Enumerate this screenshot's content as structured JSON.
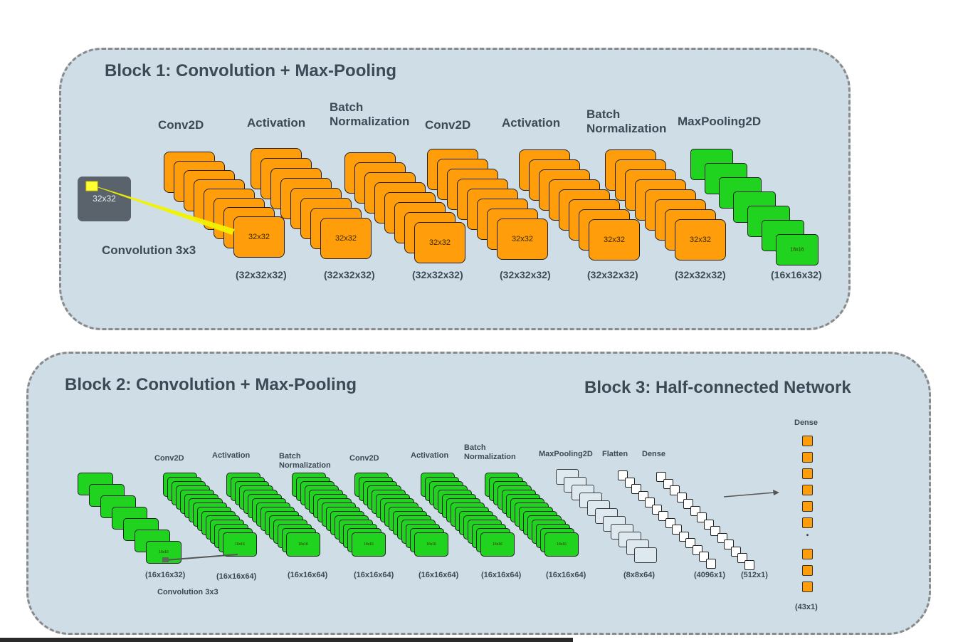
{
  "block1": {
    "title": "Block 1: Convolution + Max-Pooling",
    "input_label": "32x32",
    "conv_note": "Convolution 3x3",
    "layers": [
      {
        "name": "Conv2D",
        "output": "(32x32x32)",
        "map_label": "32x32",
        "color": "#ff9d0a"
      },
      {
        "name": "Activation",
        "output": "(32x32x32)",
        "map_label": "32x32",
        "color": "#ff9d0a"
      },
      {
        "name": "Batch\nNormalization",
        "output": "(32x32x32)",
        "map_label": "32x32",
        "color": "#ff9d0a"
      },
      {
        "name": "Conv2D",
        "output": "(32x32x32)",
        "map_label": "32x32",
        "color": "#ff9d0a"
      },
      {
        "name": "Activation",
        "output": "(32x32x32)",
        "map_label": "32x32",
        "color": "#ff9d0a"
      },
      {
        "name": "Batch\nNormalization",
        "output": "(32x32x32)",
        "map_label": "32x32",
        "color": "#ff9d0a"
      },
      {
        "name": "MaxPooling2D",
        "output": "(16x16x32)",
        "map_label": "16x16",
        "color": "#1fd31f"
      }
    ]
  },
  "block2": {
    "title": "Block 2: Convolution + Max-Pooling",
    "input_output": "(16x16x32)",
    "conv_note": "Convolution 3x3",
    "layers": [
      {
        "name": "Conv2D",
        "output": "(16x16x64)",
        "map_label": "16x16",
        "color": "#1fd31f"
      },
      {
        "name": "Activation",
        "output": "(16x16x64)",
        "map_label": "16x16",
        "color": "#1fd31f"
      },
      {
        "name": "Batch\nNormalization",
        "output": "(16x16x64)",
        "map_label": "16x16",
        "color": "#1fd31f"
      },
      {
        "name": "Conv2D",
        "output": "(16x16x64)",
        "map_label": "16x16",
        "color": "#1fd31f"
      },
      {
        "name": "Activation",
        "output": "(16x16x64)",
        "map_label": "16x16",
        "color": "#1fd31f"
      },
      {
        "name": "Batch\nNormalization",
        "output": "(16x16x64)",
        "map_label": "16x16",
        "color": "#1fd31f"
      },
      {
        "name": "MaxPooling2D",
        "output": "(8x8x64)",
        "color": "#dde8ef"
      }
    ]
  },
  "block3": {
    "title": "Block 3: Half-connected Network",
    "layers": [
      {
        "name": "Flatten",
        "output": "(4096x1)"
      },
      {
        "name": "Dense",
        "output": "(512x1)"
      },
      {
        "name": "Dense",
        "output": "(43x1)",
        "color": "#ff9d0a"
      }
    ],
    "ellipsis": "."
  }
}
